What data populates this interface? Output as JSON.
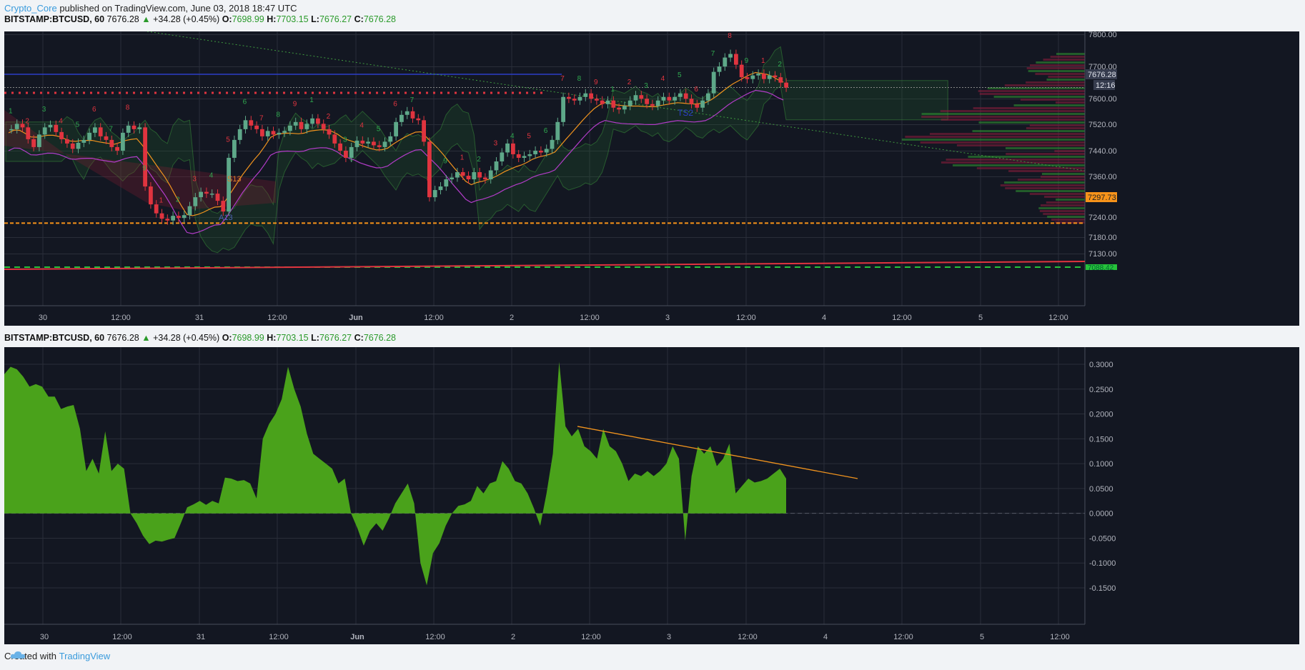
{
  "header": {
    "author": "Crypto_Core",
    "published": "published on TradingView.com, June 03, 2018 18:47 UTC"
  },
  "legend": {
    "symbol": "BITSTAMP:BTCUSD, 60",
    "last": "7676.28",
    "arrow": "▲",
    "change": "+34.28 (+0.45%)",
    "o_label": "O:",
    "o_value": "7698.99",
    "h_label": "H:",
    "h_value": "7703.15",
    "l_label": "L:",
    "l_value": "7676.27",
    "c_label": "C:",
    "c_value": "7676.28"
  },
  "footer": {
    "created_with": "Created with",
    "brand": "TradingView"
  },
  "colors": {
    "background": "#131722",
    "grid": "#2a2e39",
    "bull": "#5ea889",
    "bear": "#e0343f",
    "blue_candle": "#3d85d8",
    "osc_fill": "#4aa21b",
    "trendline": "#f0931e",
    "price_tag": "#363c4e",
    "alert_tag": "#f7931a"
  },
  "chart_data": [
    {
      "type": "candlestick",
      "title": "BITSTAMP:BTCUSD, 60",
      "x_ticks": [
        "30",
        "12:00",
        "31",
        "12:00",
        "Jun",
        "12:00",
        "2",
        "12:00",
        "3",
        "12:00",
        "4",
        "12:00",
        "5",
        "12:00"
      ],
      "y_ticks": [
        "7800.00",
        "7700.00",
        "7600.00",
        "7520.00",
        "7440.00",
        "7360.00",
        "7240.00",
        "7180.00",
        "7130.00"
      ],
      "ylim": [
        7080,
        7820
      ],
      "price_labels": [
        "7676.28",
        "12:16",
        "7297.73",
        "7088.42"
      ],
      "annotations": [
        "S13",
        "A13",
        "TS2",
        "1",
        "2",
        "3",
        "4",
        "5",
        "6",
        "7",
        "8",
        "9"
      ],
      "closes": [
        7560,
        7575,
        7565,
        7532,
        7510,
        7545,
        7565,
        7572,
        7552,
        7532,
        7520,
        7505,
        7522,
        7530,
        7550,
        7565,
        7540,
        7530,
        7510,
        7500,
        7550,
        7570,
        7560,
        7565,
        7400,
        7350,
        7325,
        7310,
        7305,
        7318,
        7312,
        7320,
        7345,
        7370,
        7385,
        7380,
        7380,
        7360,
        7330,
        7480,
        7530,
        7560,
        7585,
        7570,
        7560,
        7540,
        7555,
        7545,
        7550,
        7555,
        7570,
        7580,
        7560,
        7575,
        7590,
        7575,
        7560,
        7545,
        7520,
        7500,
        7480,
        7510,
        7528,
        7520,
        7525,
        7515,
        7510,
        7525,
        7540,
        7580,
        7600,
        7610,
        7590,
        7585,
        7525,
        7370,
        7390,
        7400,
        7420,
        7425,
        7440,
        7430,
        7420,
        7440,
        7425,
        7420,
        7445,
        7470,
        7495,
        7520,
        7490,
        7480,
        7485,
        7490,
        7500,
        7495,
        7505,
        7530,
        7580,
        7650,
        7645,
        7640,
        7650,
        7660,
        7645,
        7640,
        7630,
        7640,
        7620,
        7615,
        7625,
        7640,
        7655,
        7645,
        7630,
        7625,
        7640,
        7650,
        7640,
        7650,
        7660,
        7645,
        7630,
        7620,
        7640,
        7660,
        7720,
        7735,
        7760,
        7770,
        7740,
        7705,
        7700,
        7710,
        7715,
        7700,
        7710,
        7705,
        7690,
        7676
      ]
    },
    {
      "type": "area",
      "title": "BITSTAMP:BTCUSD, 60",
      "x_ticks": [
        "30",
        "12:00",
        "31",
        "12:00",
        "Jun",
        "12:00",
        "2",
        "12:00",
        "3",
        "12:00",
        "4",
        "12:00",
        "5",
        "12:00"
      ],
      "y_ticks": [
        "0.3000",
        "0.2500",
        "0.2000",
        "0.1500",
        "0.1000",
        "0.0500",
        "0.0000",
        "-0.0500",
        "-0.1000",
        "-0.1500"
      ],
      "ylim": [
        -0.17,
        0.32
      ],
      "values": [
        0.28,
        0.295,
        0.29,
        0.275,
        0.255,
        0.26,
        0.255,
        0.235,
        0.235,
        0.21,
        0.215,
        0.218,
        0.17,
        0.085,
        0.11,
        0.08,
        0.165,
        0.085,
        0.1,
        0.09,
        0.0,
        -0.02,
        -0.045,
        -0.062,
        -0.055,
        -0.057,
        -0.053,
        -0.05,
        -0.02,
        0.012,
        0.018,
        0.025,
        0.017,
        0.025,
        0.02,
        0.072,
        0.07,
        0.065,
        0.067,
        0.06,
        0.03,
        0.15,
        0.18,
        0.2,
        0.23,
        0.295,
        0.25,
        0.215,
        0.16,
        0.12,
        0.11,
        0.1,
        0.09,
        0.06,
        0.07,
        0.0,
        -0.03,
        -0.065,
        -0.035,
        -0.02,
        -0.035,
        -0.01,
        0.02,
        0.04,
        0.06,
        0.02,
        -0.1,
        -0.145,
        -0.08,
        -0.06,
        -0.025,
        0.0,
        0.015,
        0.018,
        0.025,
        0.055,
        0.04,
        0.06,
        0.065,
        0.105,
        0.09,
        0.065,
        0.06,
        0.04,
        0.01,
        -0.025,
        0.04,
        0.12,
        0.305,
        0.175,
        0.155,
        0.17,
        0.135,
        0.125,
        0.11,
        0.17,
        0.135,
        0.125,
        0.1,
        0.065,
        0.08,
        0.075,
        0.085,
        0.075,
        0.085,
        0.1,
        0.135,
        0.11,
        -0.055,
        0.075,
        0.135,
        0.12,
        0.135,
        0.095,
        0.11,
        0.14,
        0.04,
        0.055,
        0.07,
        0.062,
        0.065,
        0.07,
        0.08,
        0.09,
        0.07
      ]
    }
  ]
}
